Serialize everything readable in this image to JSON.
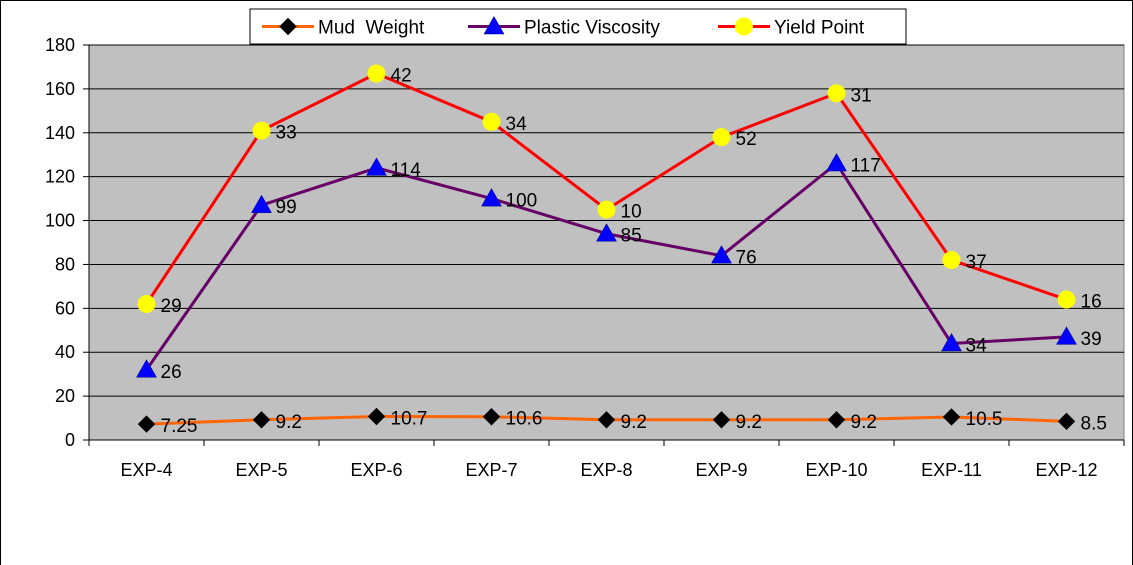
{
  "chart_data": {
    "type": "line",
    "categories": [
      "EXP-4",
      "EXP-5",
      "EXP-6",
      "EXP-7",
      "EXP-8",
      "EXP-9",
      "EXP-10",
      "EXP-11",
      "EXP-12"
    ],
    "ylim": [
      0,
      180
    ],
    "y_ticks": [
      "0",
      "20",
      "40",
      "60",
      "80",
      "100",
      "120",
      "140",
      "160",
      "180"
    ],
    "grid": true,
    "plot_background": "#c0c0c0",
    "legend_position": "top",
    "series": [
      {
        "name": "Mud  Weight",
        "color": "#ff6600",
        "marker": "diamond",
        "marker_color": "#000000",
        "values": [
          7.25,
          9.2,
          10.7,
          10.6,
          9.2,
          9.2,
          9.2,
          10.5,
          8.5
        ],
        "labels": [
          "7.25",
          "9.2",
          "10.7",
          "10.6",
          "9.2",
          "9.2",
          "9.2",
          "10.5",
          "8.5"
        ]
      },
      {
        "name": "Plastic Viscosity",
        "color": "#660066",
        "marker": "triangle",
        "marker_color": "#0000ff",
        "values": [
          32,
          107,
          124,
          110,
          94,
          84,
          126,
          44,
          47
        ],
        "labels": [
          "26",
          "99",
          "114",
          "100",
          "85",
          "76",
          "117",
          "34",
          "39"
        ]
      },
      {
        "name": "Yield Point",
        "color": "#ff0000",
        "marker": "circle",
        "marker_color": "#ffff00",
        "values": [
          62,
          141,
          167,
          145,
          105,
          138,
          158,
          82,
          64
        ],
        "labels": [
          "29",
          "33",
          "42",
          "34",
          "10",
          "52",
          "31",
          "37",
          "16"
        ]
      }
    ]
  }
}
